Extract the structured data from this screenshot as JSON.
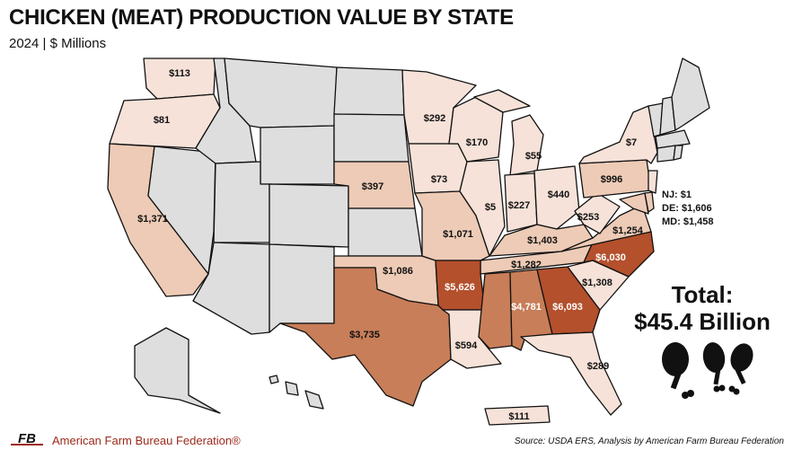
{
  "header": {
    "title": "CHICKEN (MEAT) PRODUCTION VALUE BY STATE",
    "subtitle": "2024 | $ Millions"
  },
  "colors": {
    "no_data": "#dedede",
    "tier1": "#f6e2d8",
    "tier2": "#edcbb6",
    "tier3": "#dca07f",
    "tier4": "#c87e58",
    "tier5": "#b4502c",
    "brand_red": "#9b2a1c"
  },
  "map_values": {
    "WA": "$113",
    "OR": "$81",
    "CA": "$1,371",
    "MN": "$292",
    "WI": "$170",
    "MI": "$55",
    "NY": "$7",
    "NE": "$397",
    "IA": "$73",
    "IL": "$5",
    "IN": "$227",
    "OH": "$440",
    "PA": "$996",
    "WV": "$253",
    "VA": "$1,254",
    "MO": "$1,071",
    "KY": "$1,403",
    "TN": "$1,282",
    "OK": "$1,086",
    "AR": "$5,626",
    "NC": "$6,030",
    "SC": "$1,308",
    "GA": "$6,093",
    "AL": "$4,781",
    "TX": "$3,735",
    "LA": "$594",
    "FL": "$289",
    "PR": "$111"
  },
  "small_states": [
    "NJ: $1",
    "DE: $1,606",
    "MD: $1,458"
  ],
  "total": {
    "label": "Total:",
    "value": "$45.4 Billion"
  },
  "footer": {
    "logo_text": "FB",
    "org": "American Farm Bureau Federation®",
    "source": "Source: USDA ERS, Analysis by American Farm Bureau Federation"
  }
}
